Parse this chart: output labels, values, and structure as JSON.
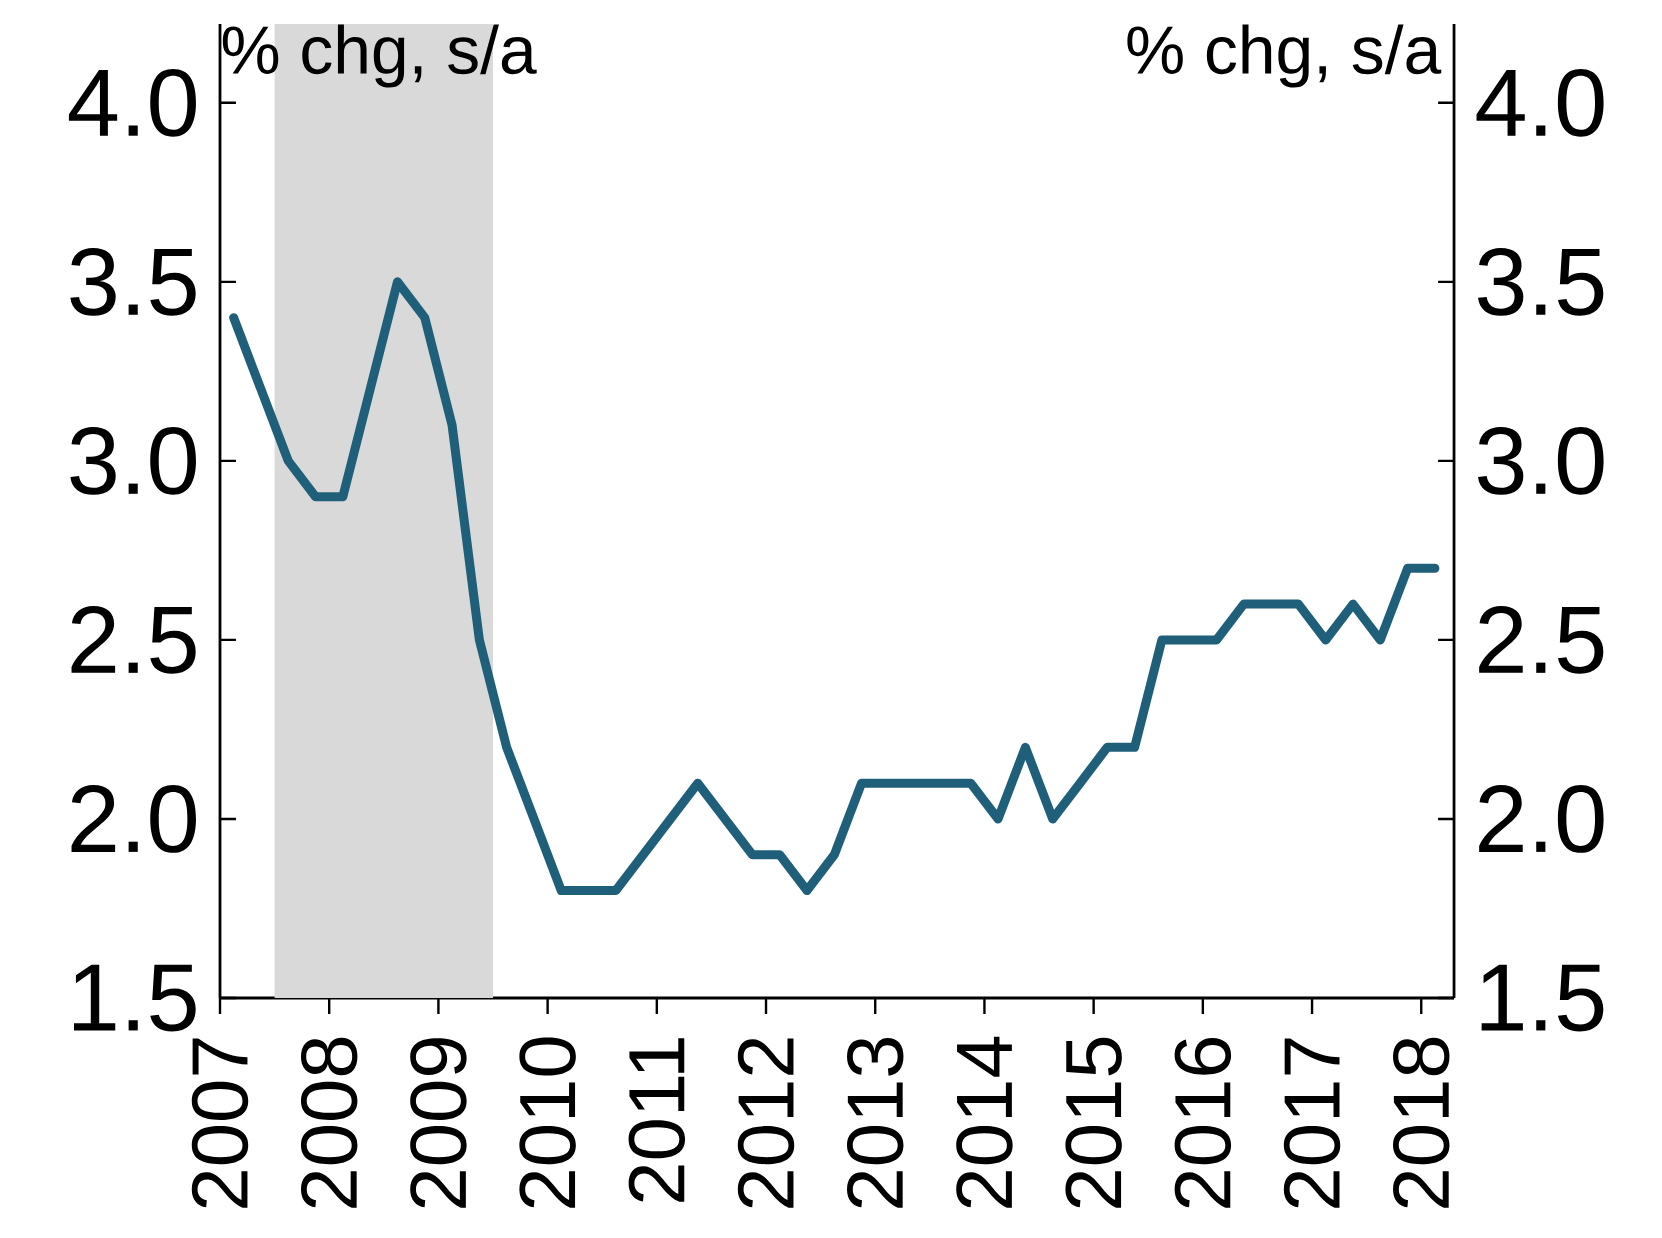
{
  "chart_data": {
    "type": "line",
    "annotations": [
      "% chg, s/a",
      "% chg, s/a"
    ],
    "x": [
      2007.125,
      2007.375,
      2007.625,
      2007.875,
      2008.125,
      2008.375,
      2008.625,
      2008.875,
      2009.125,
      2009.375,
      2009.625,
      2009.875,
      2010.125,
      2010.375,
      2010.625,
      2010.875,
      2011.125,
      2011.375,
      2011.625,
      2011.875,
      2012.125,
      2012.375,
      2012.625,
      2012.875,
      2013.125,
      2013.375,
      2013.625,
      2013.875,
      2014.125,
      2014.375,
      2014.625,
      2014.875,
      2015.125,
      2015.375,
      2015.625,
      2015.875,
      2016.125,
      2016.375,
      2016.625,
      2016.875,
      2017.125,
      2017.375,
      2017.625,
      2017.875,
      2018.125
    ],
    "series": [
      {
        "color": "#1f5f7a",
        "values": [
          3.4,
          3.2,
          3.0,
          2.9,
          2.9,
          3.2,
          3.5,
          3.4,
          3.1,
          2.5,
          2.2,
          2.0,
          1.8,
          1.8,
          1.8,
          1.9,
          2.0,
          2.1,
          2.0,
          1.9,
          1.9,
          1.8,
          1.9,
          2.1,
          2.1,
          2.1,
          2.1,
          2.1,
          2.0,
          2.2,
          2.0,
          2.1,
          2.2,
          2.2,
          2.5,
          2.5,
          2.5,
          2.6,
          2.6,
          2.6,
          2.5,
          2.6,
          2.5,
          2.7,
          2.7
        ]
      }
    ],
    "xlim": [
      2007,
      2018.3
    ],
    "xticks": [
      2007,
      2008,
      2009,
      2010,
      2011,
      2012,
      2013,
      2014,
      2015,
      2016,
      2017,
      2018
    ],
    "ylim": [
      1.5,
      4.22
    ],
    "yticks": [
      {
        "value": 1.5,
        "label": "1.5"
      },
      {
        "value": 2.0,
        "label": "2.0"
      },
      {
        "value": 2.5,
        "label": "2.5"
      },
      {
        "value": 3.0,
        "label": "3.0"
      },
      {
        "value": 3.5,
        "label": "3.5"
      },
      {
        "value": 4.0,
        "label": "4.0"
      }
    ],
    "y2lim": [
      1.5,
      4.22
    ],
    "y2ticks": [
      {
        "value": 1.5,
        "label": "1.5"
      },
      {
        "value": 2.0,
        "label": "2.0"
      },
      {
        "value": 2.5,
        "label": "2.5"
      },
      {
        "value": 3.0,
        "label": "3.0"
      },
      {
        "value": 3.5,
        "label": "3.5"
      },
      {
        "value": 4.0,
        "label": "4.0"
      }
    ],
    "bands": [
      {
        "axis": "x",
        "from": 2007.5,
        "to": 2009.5,
        "color": "#d9d9d9"
      }
    ],
    "grid": false,
    "marker": "none",
    "line_style": "solid"
  }
}
